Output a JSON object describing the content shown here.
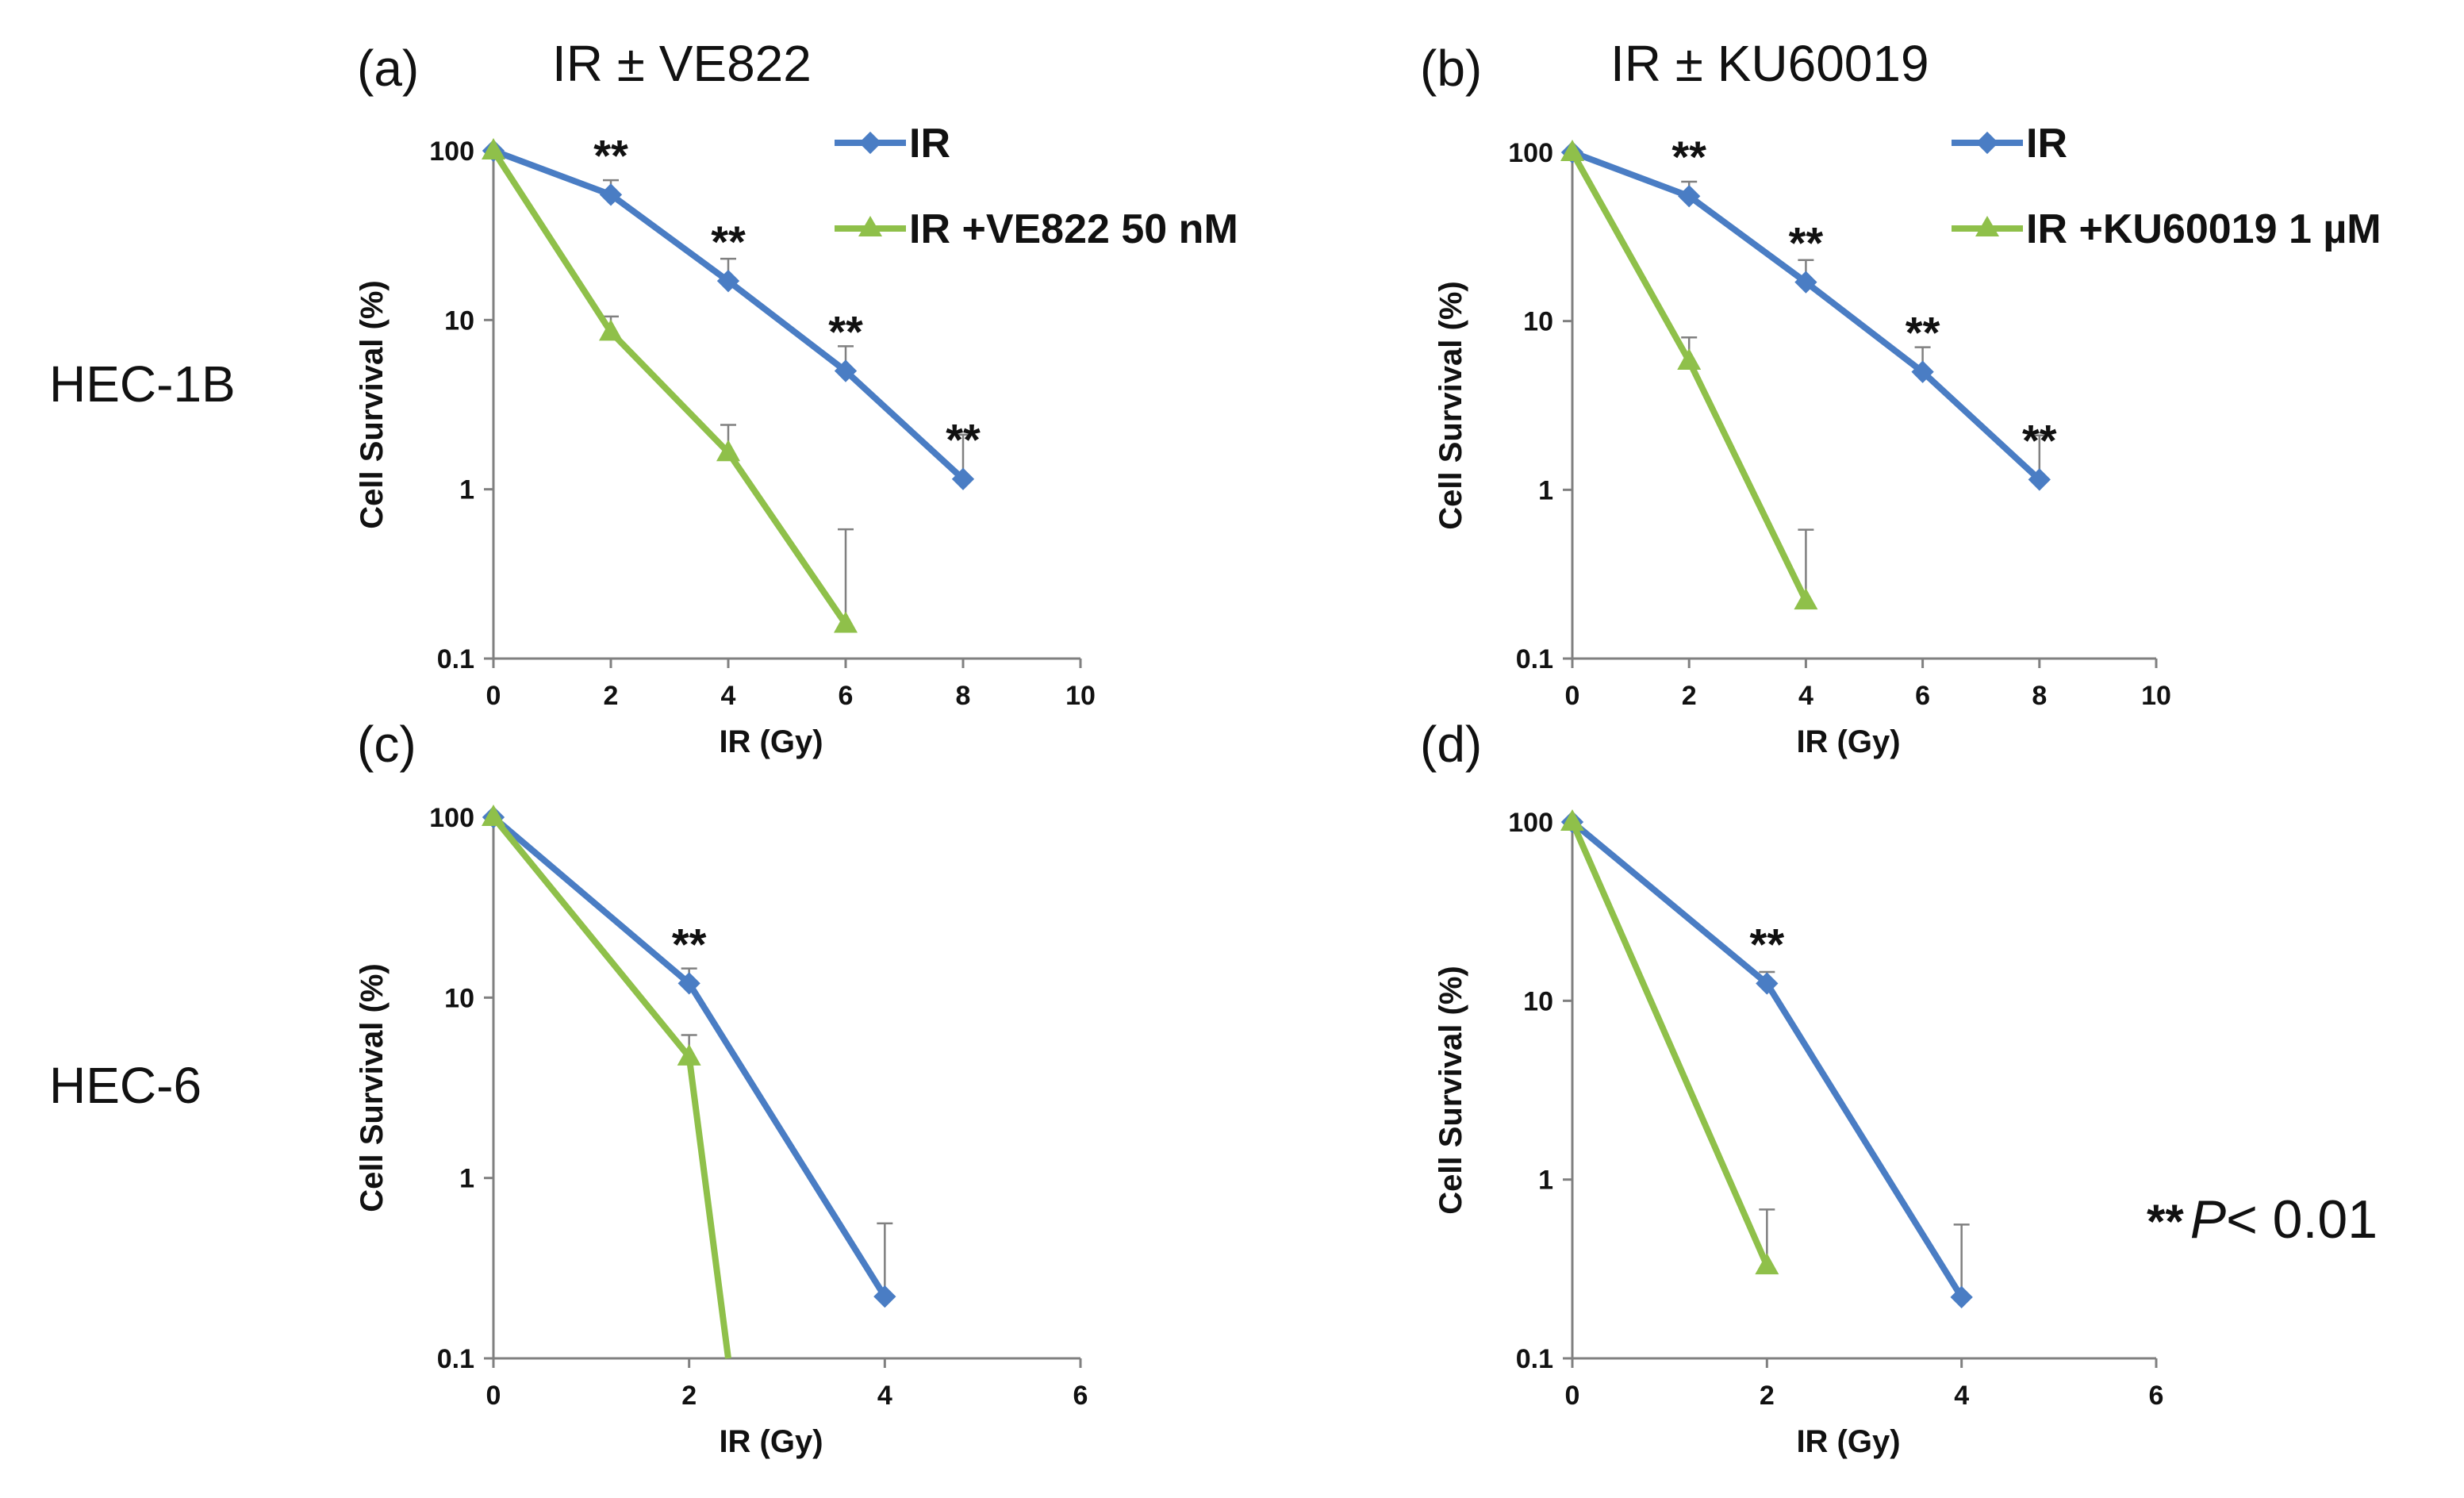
{
  "figure": {
    "row_labels": [
      "HEC-1B",
      "HEC-6"
    ],
    "footnote": {
      "stars": "**",
      "p": "P",
      "rest": "< 0.01"
    }
  },
  "colors": {
    "IR": "#4a7dc4",
    "treated": "#8fc04a",
    "axis": "#808080",
    "errorbar": "#808080",
    "text": "#111111"
  },
  "chart_data": [
    {
      "type": "line",
      "panel": "(a)",
      "title": "IR ± VE822",
      "xlabel": "IR (Gy)",
      "ylabel": "Cell Survival (%)",
      "xlim": [
        0,
        10
      ],
      "xticks": [
        0,
        2,
        4,
        6,
        8,
        10
      ],
      "ylim": [
        0.1,
        100
      ],
      "yscale": "log",
      "yticks": [
        100,
        10,
        1,
        0.1
      ],
      "ytick_labels": [
        "100",
        "10",
        "1",
        "0.1"
      ],
      "legend": "top-right",
      "series": [
        {
          "name": "IR",
          "marker": "diamond",
          "x": [
            0,
            2,
            4,
            6,
            8
          ],
          "y": [
            100,
            55,
            17,
            5,
            1.15
          ],
          "err_upper": [
            null,
            67,
            23,
            7,
            2.1
          ]
        },
        {
          "name": "IR +VE822 50 nM",
          "marker": "triangle",
          "x": [
            0,
            2,
            4,
            6
          ],
          "y": [
            100,
            8.5,
            1.65,
            0.16
          ],
          "err_upper": [
            null,
            10.5,
            2.4,
            0.58
          ]
        }
      ],
      "annotations": [
        {
          "x": 2,
          "y": 55,
          "text": "**"
        },
        {
          "x": 4,
          "y": 17,
          "text": "**"
        },
        {
          "x": 6,
          "y": 5,
          "text": "**"
        },
        {
          "x": 8,
          "y": 1.15,
          "text": "**"
        }
      ]
    },
    {
      "type": "line",
      "panel": "(b)",
      "title": "IR ±  KU60019",
      "xlabel": "IR (Gy)",
      "ylabel": "Cell Survival (%)",
      "xlim": [
        0,
        10
      ],
      "xticks": [
        0,
        2,
        4,
        6,
        8,
        10
      ],
      "ylim": [
        0.1,
        100
      ],
      "yscale": "log",
      "yticks": [
        100,
        10,
        1,
        0.1
      ],
      "ytick_labels": [
        "100",
        "10",
        "1",
        "0.1"
      ],
      "legend": "top-right",
      "series": [
        {
          "name": "IR",
          "marker": "diamond",
          "x": [
            0,
            2,
            4,
            6,
            8
          ],
          "y": [
            100,
            55,
            17,
            5,
            1.15
          ],
          "err_upper": [
            null,
            67,
            23,
            7,
            2.1
          ]
        },
        {
          "name": "IR +KU60019 1 µM",
          "marker": "triangle",
          "x": [
            0,
            2,
            4
          ],
          "y": [
            100,
            5.8,
            0.22
          ],
          "err_upper": [
            null,
            8,
            0.58
          ]
        }
      ],
      "annotations": [
        {
          "x": 2,
          "y": 55,
          "text": "**"
        },
        {
          "x": 4,
          "y": 17,
          "text": "**"
        },
        {
          "x": 6,
          "y": 5,
          "text": "**"
        },
        {
          "x": 8,
          "y": 1.15,
          "text": "**"
        }
      ]
    },
    {
      "type": "line",
      "panel": "(c)",
      "title": "",
      "xlabel": "IR (Gy)",
      "ylabel": "Cell Survival (%)",
      "xlim": [
        0,
        6
      ],
      "xticks": [
        0,
        2,
        4,
        6
      ],
      "ylim": [
        0.1,
        100
      ],
      "yscale": "log",
      "yticks": [
        100,
        10,
        1,
        0.1
      ],
      "ytick_labels": [
        "100",
        "10",
        "1",
        "0.1"
      ],
      "series": [
        {
          "name": "IR",
          "marker": "diamond",
          "x": [
            0,
            2,
            4
          ],
          "y": [
            100,
            12,
            0.22
          ],
          "err_upper": [
            null,
            14.5,
            0.56
          ]
        },
        {
          "name": "IR +VE822 50 nM",
          "marker": "triangle",
          "x": [
            0,
            2,
            2.4
          ],
          "y": [
            100,
            4.7,
            0.1
          ],
          "err_upper": [
            null,
            6.2,
            null
          ],
          "marker_mask": [
            true,
            true,
            false
          ]
        }
      ],
      "annotations": [
        {
          "x": 2,
          "y": 12,
          "text": "**"
        }
      ]
    },
    {
      "type": "line",
      "panel": "(d)",
      "title": "",
      "xlabel": "IR (Gy)",
      "ylabel": "Cell Survival (%)",
      "xlim": [
        0,
        6
      ],
      "xticks": [
        0,
        2,
        4,
        6
      ],
      "ylim": [
        0.1,
        100
      ],
      "yscale": "log",
      "yticks": [
        100,
        10,
        1,
        0.1
      ],
      "ytick_labels": [
        "100",
        "10",
        "1",
        "0.1"
      ],
      "series": [
        {
          "name": "IR",
          "marker": "diamond",
          "x": [
            0,
            2,
            4
          ],
          "y": [
            100,
            12.5,
            0.22
          ],
          "err_upper": [
            null,
            14.5,
            0.56
          ]
        },
        {
          "name": "IR +KU60019 1 µM",
          "marker": "triangle",
          "x": [
            0,
            2
          ],
          "y": [
            100,
            0.33
          ],
          "err_upper": [
            null,
            0.68
          ]
        }
      ],
      "annotations": [
        {
          "x": 2,
          "y": 12.5,
          "text": "**"
        }
      ]
    }
  ]
}
